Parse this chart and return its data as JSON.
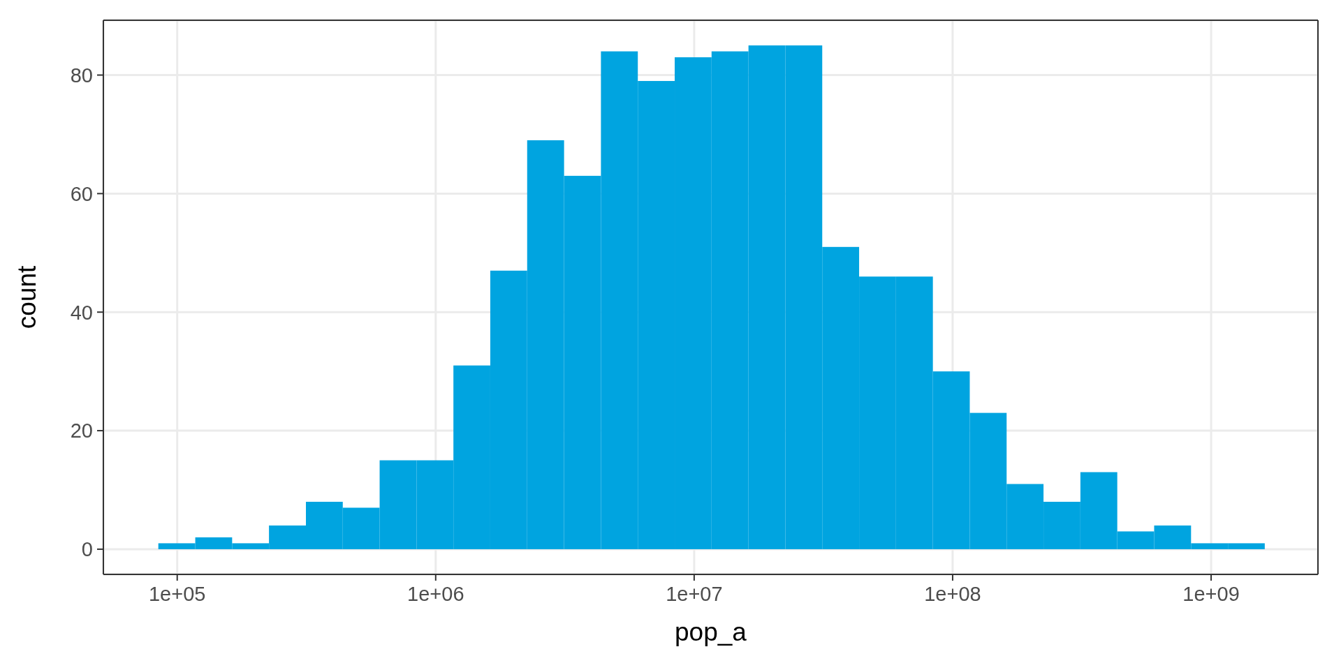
{
  "chart_data": {
    "type": "histogram",
    "xlabel": "pop_a",
    "ylabel": "count",
    "color": "#00a4e0",
    "log": "x",
    "grid": true,
    "bins": [
      84500,
      117400,
      163000,
      226300,
      314400,
      436500,
      606100,
      841800,
      1169000,
      1623000,
      2254000,
      3131000,
      4347000,
      6037000,
      8384000,
      11640000,
      16170000,
      22450000,
      31180000,
      43300000,
      60120000,
      83500000,
      115960000,
      161000000,
      223600000,
      310500000,
      431200000,
      598800000,
      831600000,
      1155000000,
      1603000000
    ],
    "values": [
      1,
      2,
      1,
      4,
      8,
      7,
      15,
      15,
      31,
      47,
      69,
      63,
      84,
      79,
      83,
      84,
      85,
      85,
      51,
      46,
      46,
      30,
      23,
      11,
      8,
      13,
      3,
      4,
      1,
      1
    ],
    "xlim": [
      51800,
      2590000000
    ],
    "ylim": [
      -4.25,
      89.25
    ],
    "xticks": [
      {
        "value": 100000,
        "label": "1e+05"
      },
      {
        "value": 1000000,
        "label": "1e+06"
      },
      {
        "value": 10000000,
        "label": "1e+07"
      },
      {
        "value": 100000000,
        "label": "1e+08"
      },
      {
        "value": 1000000000,
        "label": "1e+09"
      }
    ],
    "yticks": [
      0,
      20,
      40,
      60,
      80
    ]
  }
}
